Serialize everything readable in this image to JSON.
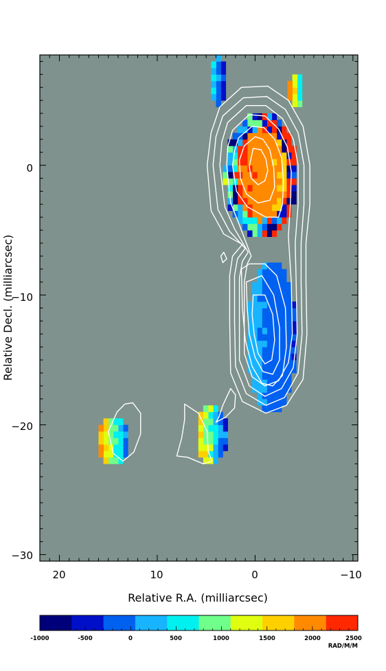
{
  "chart_data": {
    "type": "heatmap",
    "title": "",
    "xlabel": "Relative R.A. (milliarcsec)",
    "ylabel": "Relative Decl. (milliarcsec)",
    "xlim": [
      22,
      -10.5
    ],
    "ylim": [
      -30.5,
      8.5
    ],
    "x_ticks": [
      20,
      10,
      0,
      -10
    ],
    "y_ticks": [
      0,
      -10,
      -20,
      -30
    ],
    "x_tick_labels": [
      "20",
      "10",
      "0",
      "−10"
    ],
    "y_tick_labels": [
      "0",
      "−10",
      "−20",
      "−30"
    ],
    "background_color": "#7f928d",
    "contour_color": "#ffffff",
    "colorbar": {
      "range": [
        -1000,
        2500
      ],
      "ticks": [
        -1000,
        -500,
        0,
        500,
        1000,
        1500,
        2000,
        2500
      ],
      "tick_labels": [
        "-1000",
        "-500",
        "0",
        "500",
        "1000",
        "1500",
        "2000",
        "2500"
      ],
      "unit": "RAD/M/M",
      "colors": [
        "#00007a",
        "#0010c8",
        "#0060f0",
        "#18b4ff",
        "#00f0f0",
        "#70ff8a",
        "#e0ff10",
        "#ffd000",
        "#ff8a00",
        "#ff2800"
      ]
    },
    "rm_regions": [
      {
        "name": "core",
        "x_range": [
          3,
          -4.2
        ],
        "y_range": [
          4,
          -5.5
        ],
        "rm_range": [
          1500,
          2500
        ],
        "edge_rm_range": [
          -1000,
          1200
        ]
      },
      {
        "name": "jet",
        "x_range": [
          0.8,
          -4.2
        ],
        "y_range": [
          -7.5,
          -19
        ],
        "rm_range": [
          -400,
          300
        ]
      },
      {
        "name": "north-blob",
        "x_range": [
          4.5,
          3
        ],
        "y_range": [
          8.5,
          4.5
        ],
        "rm_range": [
          -900,
          900
        ]
      },
      {
        "name": "ne-blob",
        "x_range": [
          -3.5,
          -4.8
        ],
        "y_range": [
          7,
          4.5
        ],
        "rm_range": [
          0,
          2500
        ]
      },
      {
        "name": "sw-blob",
        "x_range": [
          16,
          13
        ],
        "y_range": [
          -19.5,
          -23
        ],
        "rm_range": [
          -600,
          2500
        ]
      },
      {
        "name": "mid-blob",
        "x_range": [
          6,
          2.8
        ],
        "y_range": [
          -18.5,
          -23
        ],
        "rm_range": [
          -1000,
          2500
        ]
      }
    ],
    "contours": [
      {
        "name": "outer",
        "points": [
          [
            3.6,
            4.5
          ],
          [
            1.4,
            6
          ],
          [
            -1.3,
            6.1
          ],
          [
            -3.4,
            5
          ],
          [
            -4.9,
            3
          ],
          [
            -5.6,
            0
          ],
          [
            -5.6,
            -3
          ],
          [
            -5.2,
            -6
          ],
          [
            -5.2,
            -9
          ],
          [
            -5.3,
            -13
          ],
          [
            -4.9,
            -16.5
          ],
          [
            -3.2,
            -18.5
          ],
          [
            -1.1,
            -19.1
          ],
          [
            1.3,
            -18.2
          ],
          [
            2.5,
            -16
          ],
          [
            2.6,
            -12
          ],
          [
            2.6,
            -8.5
          ],
          [
            2.3,
            -7
          ],
          [
            1.3,
            -6.1
          ],
          [
            3.2,
            -5.3
          ],
          [
            4.5,
            -3.5
          ],
          [
            4.9,
            0
          ],
          [
            4.5,
            2.5
          ]
        ]
      },
      {
        "name": "c2",
        "points": [
          [
            3.3,
            3.8
          ],
          [
            1.2,
            5.2
          ],
          [
            -1.2,
            5.3
          ],
          [
            -3.1,
            4.3
          ],
          [
            -4.4,
            2.5
          ],
          [
            -5,
            0
          ],
          [
            -5,
            -3
          ],
          [
            -4.7,
            -6
          ],
          [
            -4.7,
            -9
          ],
          [
            -4.8,
            -13
          ],
          [
            -4.4,
            -16
          ],
          [
            -3,
            -17.9
          ],
          [
            -1.1,
            -18.5
          ],
          [
            0.9,
            -17.6
          ],
          [
            2,
            -15.5
          ],
          [
            2.1,
            -12
          ],
          [
            2.1,
            -8.5
          ],
          [
            1.8,
            -7.2
          ],
          [
            1,
            -6.4
          ],
          [
            2.6,
            -5.1
          ],
          [
            3.8,
            -3.4
          ],
          [
            4.3,
            0
          ],
          [
            4,
            2.2
          ]
        ]
      },
      {
        "name": "c3",
        "points": [
          [
            2.8,
            3.3
          ],
          [
            0.9,
            4.6
          ],
          [
            -1.1,
            4.6
          ],
          [
            -2.8,
            3.6
          ],
          [
            -3.9,
            2
          ],
          [
            -4.4,
            0
          ],
          [
            -4.4,
            -3
          ],
          [
            -4.1,
            -6
          ],
          [
            -4.2,
            -9
          ],
          [
            -4.3,
            -13
          ],
          [
            -3.9,
            -15.6
          ],
          [
            -2.7,
            -17.2
          ],
          [
            -1,
            -17.8
          ],
          [
            0.6,
            -17
          ],
          [
            1.6,
            -15
          ],
          [
            1.6,
            -12
          ],
          [
            1.6,
            -8.7
          ],
          [
            1.3,
            -7.4
          ],
          [
            0.7,
            -6.7
          ],
          [
            2.1,
            -4.9
          ],
          [
            3.1,
            -3.2
          ],
          [
            3.6,
            0
          ],
          [
            3.4,
            1.8
          ]
        ]
      },
      {
        "name": "c4",
        "points": [
          [
            2.3,
            2.7
          ],
          [
            0.6,
            3.9
          ],
          [
            -1,
            3.8
          ],
          [
            -2.4,
            2.8
          ],
          [
            -3.3,
            1.4
          ],
          [
            -3.7,
            -0.5
          ],
          [
            -3.6,
            -3
          ],
          [
            -3.4,
            -5.5
          ],
          [
            -3.7,
            -9
          ],
          [
            -3.8,
            -13
          ],
          [
            -3.4,
            -15.2
          ],
          [
            -2.4,
            -16.6
          ],
          [
            -1,
            -17
          ],
          [
            0.3,
            -16.3
          ],
          [
            1.1,
            -14.5
          ],
          [
            1.1,
            -12
          ],
          [
            1.1,
            -9
          ],
          [
            0.8,
            -7.6
          ],
          [
            0.4,
            -7
          ],
          [
            1.6,
            -4.6
          ],
          [
            2.5,
            -2.9
          ],
          [
            2.9,
            0
          ],
          [
            2.8,
            1.4
          ]
        ]
      },
      {
        "name": "c5",
        "points": [
          [
            1.7,
            2.1
          ],
          [
            0.3,
            3
          ],
          [
            -0.9,
            2.9
          ],
          [
            -2,
            2
          ],
          [
            -2.7,
            0.6
          ],
          [
            -2.9,
            -1.2
          ],
          [
            -2.8,
            -3
          ],
          [
            -2.4,
            -4
          ],
          [
            -1.1,
            -4
          ],
          [
            0.8,
            -3.2
          ],
          [
            1.9,
            -2
          ],
          [
            2.3,
            0
          ],
          [
            2.1,
            1.1
          ]
        ]
      },
      {
        "name": "c6",
        "points": [
          [
            1.1,
            1.5
          ],
          [
            0,
            2.2
          ],
          [
            -0.8,
            2
          ],
          [
            -1.5,
            1.2
          ],
          [
            -1.9,
            -0.2
          ],
          [
            -2,
            -1.7
          ],
          [
            -1.5,
            -2.7
          ],
          [
            -0.3,
            -2.9
          ],
          [
            0.9,
            -2.2
          ],
          [
            1.5,
            -1
          ],
          [
            1.6,
            0.4
          ]
        ]
      },
      {
        "name": "c7",
        "points": [
          [
            0.2,
            1.3
          ],
          [
            -0.6,
            1.2
          ],
          [
            -1.1,
            0.5
          ],
          [
            -1.3,
            -0.4
          ],
          [
            -1,
            -1.2
          ],
          [
            -0.3,
            -1.5
          ],
          [
            0.4,
            -1
          ],
          [
            0.6,
            -0.1
          ]
        ]
      },
      {
        "name": "jet-inner-1",
        "points": [
          [
            1.4,
            -8
          ],
          [
            0.6,
            -7.6
          ],
          [
            -1,
            -7.6
          ],
          [
            -2.2,
            -8.5
          ],
          [
            -3.1,
            -11
          ],
          [
            -3.2,
            -14
          ],
          [
            -2.8,
            -16.2
          ],
          [
            -1.8,
            -17
          ],
          [
            -0.7,
            -16.8
          ],
          [
            0.3,
            -15.5
          ],
          [
            1,
            -13.5
          ],
          [
            1.3,
            -11
          ]
        ]
      },
      {
        "name": "jet-inner-2",
        "points": [
          [
            0.9,
            -9
          ],
          [
            -0.7,
            -8.5
          ],
          [
            -1.9,
            -10
          ],
          [
            -2.5,
            -12.5
          ],
          [
            -2.5,
            -15
          ],
          [
            -1.8,
            -16.1
          ],
          [
            -0.8,
            -15.9
          ],
          [
            0,
            -14.8
          ],
          [
            0.6,
            -13
          ],
          [
            0.8,
            -11
          ]
        ]
      },
      {
        "name": "jet-inner-3",
        "points": [
          [
            0.2,
            -10
          ],
          [
            -1,
            -10
          ],
          [
            -1.8,
            -11.5
          ],
          [
            -2,
            -13.5
          ],
          [
            -1.7,
            -15
          ],
          [
            -1,
            -15.3
          ],
          [
            -0.3,
            -14.5
          ],
          [
            0.1,
            -13
          ],
          [
            0.3,
            -11.5
          ]
        ]
      },
      {
        "name": "small-loop",
        "points": [
          [
            3.2,
            -6.7
          ],
          [
            2.9,
            -7.2
          ],
          [
            3.3,
            -7.5
          ],
          [
            3.5,
            -7
          ]
        ]
      },
      {
        "name": "mid-left-loop",
        "points": [
          [
            7.2,
            -18.4
          ],
          [
            5.8,
            -19.1
          ],
          [
            4.9,
            -20.5
          ],
          [
            4.8,
            -22
          ],
          [
            4.4,
            -22.8
          ],
          [
            5.3,
            -23
          ],
          [
            6.9,
            -22.5
          ],
          [
            8,
            -22.4
          ],
          [
            7.5,
            -21
          ],
          [
            7.2,
            -19.6
          ]
        ]
      },
      {
        "name": "mid-right-loop",
        "points": [
          [
            2.5,
            -17.2
          ],
          [
            3.3,
            -18.5
          ],
          [
            3.7,
            -19.4
          ],
          [
            4,
            -19.8
          ],
          [
            3,
            -19.4
          ],
          [
            2.1,
            -18.7
          ],
          [
            2,
            -17.7
          ]
        ]
      },
      {
        "name": "sw-loop",
        "points": [
          [
            12.5,
            -18.3
          ],
          [
            11.7,
            -19.1
          ],
          [
            11.7,
            -20.7
          ],
          [
            12.4,
            -22.1
          ],
          [
            13.5,
            -22.8
          ],
          [
            14.5,
            -22.2
          ],
          [
            15,
            -20.5
          ],
          [
            14.1,
            -19
          ],
          [
            13.3,
            -18.4
          ]
        ]
      }
    ]
  }
}
